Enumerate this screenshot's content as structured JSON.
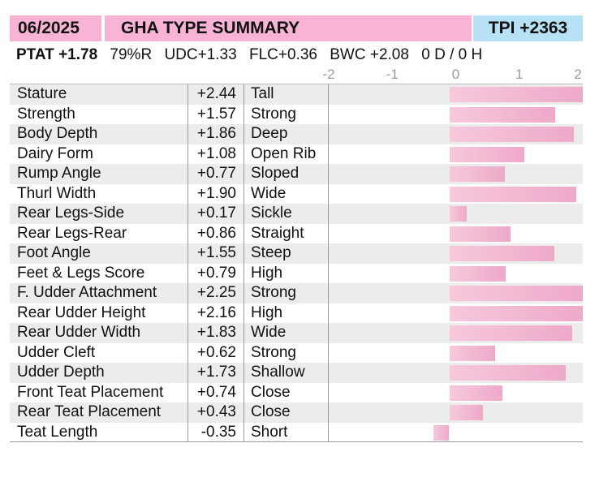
{
  "header": {
    "date": "06/2025",
    "title": "GHA TYPE SUMMARY",
    "tpi": "TPI +2363"
  },
  "stats": {
    "ptat": "PTAT +1.78",
    "reliability": "79%R",
    "udc": "UDC+1.33",
    "flc": "FLC+0.36",
    "bwc": "BWC +2.08",
    "dh": "0 D /  0 H"
  },
  "colors": {
    "header_pink": "#f9b3d4",
    "header_blue": "#b7e1f4",
    "bar_pink": "#eea9c8",
    "row_shade": "#ececec"
  },
  "chart_data": {
    "type": "bar",
    "orientation": "horizontal",
    "xlim": [
      -2,
      2
    ],
    "ticks": [
      "-2",
      "-1",
      "0",
      "1",
      "2"
    ],
    "grid": false,
    "rows": [
      {
        "trait": "Stature",
        "value": 2.44,
        "value_label": "+2.44",
        "descriptor": "Tall"
      },
      {
        "trait": "Strength",
        "value": 1.57,
        "value_label": "+1.57",
        "descriptor": "Strong"
      },
      {
        "trait": "Body Depth",
        "value": 1.86,
        "value_label": "+1.86",
        "descriptor": "Deep"
      },
      {
        "trait": "Dairy Form",
        "value": 1.08,
        "value_label": "+1.08",
        "descriptor": "Open Rib"
      },
      {
        "trait": "Rump Angle",
        "value": 0.77,
        "value_label": "+0.77",
        "descriptor": "Sloped"
      },
      {
        "trait": "Thurl Width",
        "value": 1.9,
        "value_label": "+1.90",
        "descriptor": "Wide"
      },
      {
        "trait": "Rear Legs-Side",
        "value": 0.17,
        "value_label": "+0.17",
        "descriptor": "Sickle"
      },
      {
        "trait": "Rear Legs-Rear",
        "value": 0.86,
        "value_label": "+0.86",
        "descriptor": "Straight"
      },
      {
        "trait": "Foot Angle",
        "value": 1.55,
        "value_label": "+1.55",
        "descriptor": "Steep"
      },
      {
        "trait": "Feet & Legs Score",
        "value": 0.79,
        "value_label": "+0.79",
        "descriptor": "High"
      },
      {
        "trait": "F. Udder Attachment",
        "value": 2.25,
        "value_label": "+2.25",
        "descriptor": "Strong"
      },
      {
        "trait": "Rear Udder Height",
        "value": 2.16,
        "value_label": "+2.16",
        "descriptor": "High"
      },
      {
        "trait": "Rear Udder Width",
        "value": 1.83,
        "value_label": "+1.83",
        "descriptor": "Wide"
      },
      {
        "trait": "Udder Cleft",
        "value": 0.62,
        "value_label": "+0.62",
        "descriptor": "Strong"
      },
      {
        "trait": "Udder Depth",
        "value": 1.73,
        "value_label": "+1.73",
        "descriptor": "Shallow"
      },
      {
        "trait": "Front Teat Placement",
        "value": 0.74,
        "value_label": "+0.74",
        "descriptor": "Close"
      },
      {
        "trait": "Rear Teat Placement",
        "value": 0.43,
        "value_label": "+0.43",
        "descriptor": "Close"
      },
      {
        "trait": "Teat Length",
        "value": -0.35,
        "value_label": "-0.35",
        "descriptor": "Short"
      }
    ]
  }
}
